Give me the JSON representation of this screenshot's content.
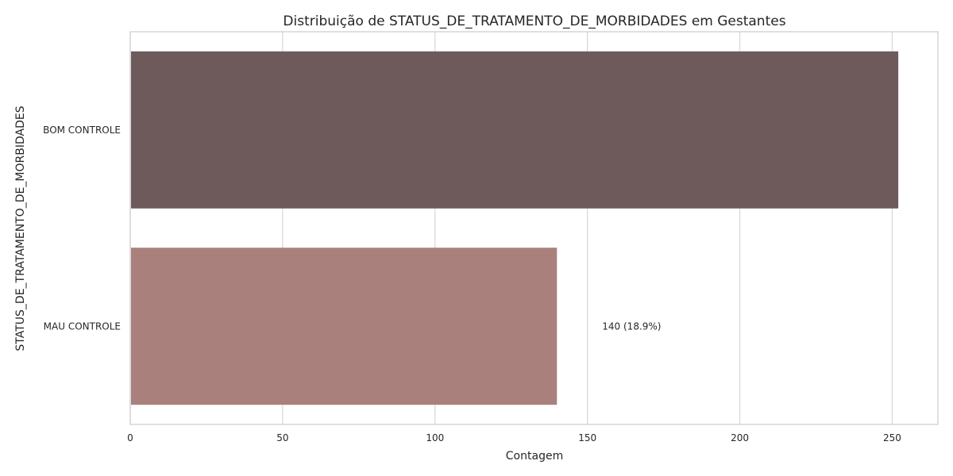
{
  "chart_data": {
    "type": "bar",
    "orientation": "horizontal",
    "title": "Distribuição de STATUS_DE_TRATAMENTO_DE_MORBIDADES em Gestantes",
    "xlabel": "Contagem",
    "ylabel": "STATUS_DE_TRATAMENTO_DE_MORBIDADES",
    "categories": [
      "BOM CONTROLE",
      "MAU CONTROLE"
    ],
    "values": [
      252,
      140
    ],
    "bar_labels": [
      "",
      "140 (18.9%)"
    ],
    "colors": [
      "#6e5a5a",
      "#a9807c"
    ],
    "xlim": [
      0,
      265
    ],
    "xticks": [
      0,
      50,
      100,
      150,
      200,
      250
    ],
    "xtick_labels": [
      "0",
      "50",
      "100",
      "150",
      "200",
      "250"
    ],
    "grid": true
  }
}
